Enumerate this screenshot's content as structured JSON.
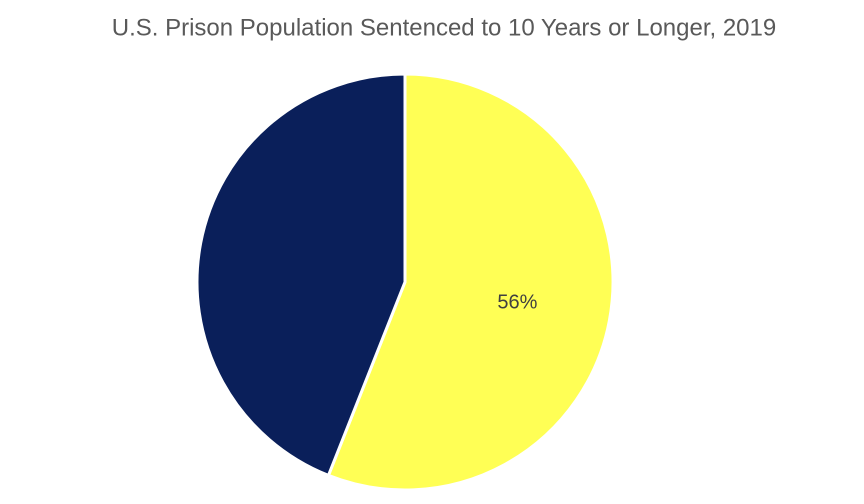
{
  "chart_data": {
    "type": "pie",
    "title": "U.S. Prison Population Sentenced to 10 Years or Longer, 2019",
    "values": [
      56,
      44
    ],
    "value_labels": [
      "56%",
      null
    ],
    "colors": [
      "#ffff55",
      "#0a1f5a"
    ]
  }
}
